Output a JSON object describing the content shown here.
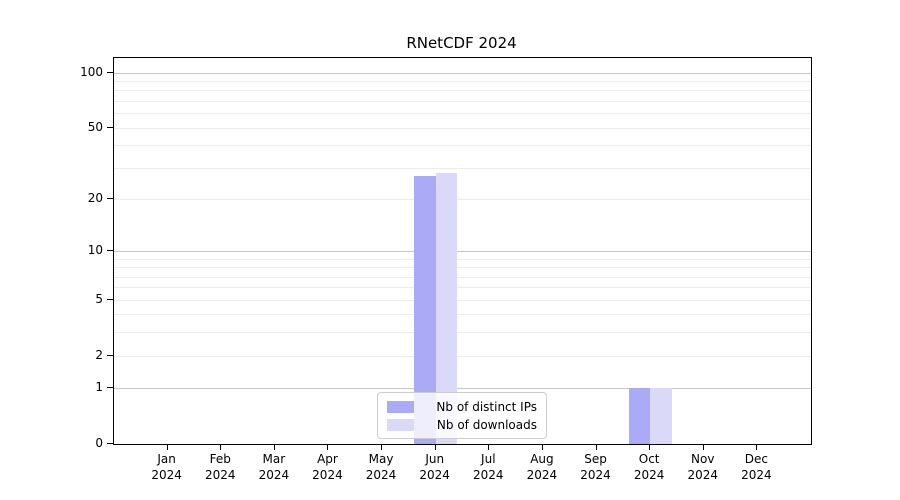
{
  "title": "RNetCDF 2024",
  "chart_data": {
    "type": "bar",
    "title": "RNetCDF 2024",
    "categories": [
      "Jan",
      "Feb",
      "Mar",
      "Apr",
      "May",
      "Jun",
      "Jul",
      "Aug",
      "Sep",
      "Oct",
      "Nov",
      "Dec"
    ],
    "year_label": "2024",
    "series": [
      {
        "name": "Nb of distinct IPs",
        "color": "#aaaaf6",
        "values": [
          0,
          0,
          0,
          0,
          0,
          27,
          0,
          0,
          0,
          1,
          0,
          0
        ]
      },
      {
        "name": "Nb of downloads",
        "color": "#dadaf8",
        "values": [
          0,
          0,
          0,
          0,
          0,
          28,
          0,
          0,
          0,
          1,
          0,
          0
        ]
      }
    ],
    "xlabel": "",
    "ylabel": "",
    "y_axis": {
      "scale": "log10(value+1)",
      "ticks": [
        0,
        1,
        2,
        5,
        10,
        20,
        50,
        100
      ],
      "ylim": [
        0,
        120
      ],
      "major_gridlines": [
        1,
        10,
        100
      ],
      "minor_gridlines": [
        2,
        3,
        4,
        5,
        6,
        7,
        8,
        9,
        20,
        30,
        40,
        50,
        60,
        70,
        80,
        90
      ]
    },
    "legend": {
      "position": "lower center"
    },
    "grid": "on"
  }
}
